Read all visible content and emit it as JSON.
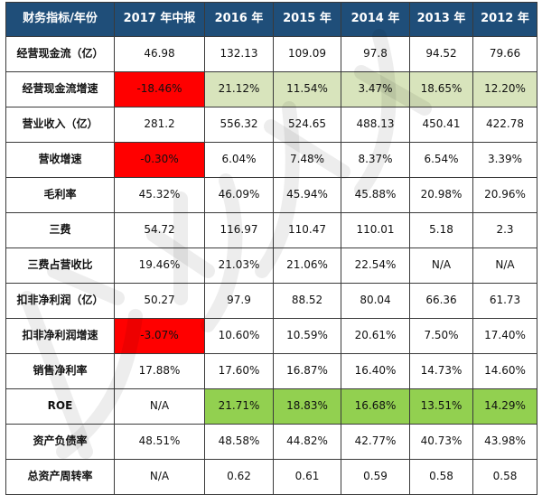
{
  "table": {
    "headers": [
      "财务指标/年份",
      "2017 年中报",
      "2016 年",
      "2015 年",
      "2014 年",
      "2013 年",
      "2012 年"
    ],
    "rows": [
      {
        "label": "经营现金流（亿）",
        "values": [
          "46.98",
          "132.13",
          "109.09",
          "97.8",
          "94.52",
          "79.66"
        ],
        "highlight": [
          "",
          "",
          "",
          "",
          "",
          ""
        ]
      },
      {
        "label": "经营现金流增速",
        "values": [
          "-18.46%",
          "21.12%",
          "11.54%",
          "3.47%",
          "18.65%",
          "12.20%"
        ],
        "highlight": [
          "red",
          "light",
          "light",
          "light",
          "light",
          "light"
        ]
      },
      {
        "label": "营业收入（亿）",
        "values": [
          "281.2",
          "556.32",
          "524.65",
          "488.13",
          "450.41",
          "422.78"
        ],
        "highlight": [
          "",
          "",
          "",
          "",
          "",
          ""
        ]
      },
      {
        "label": "营收增速",
        "values": [
          "-0.30%",
          "6.04%",
          "7.48%",
          "8.37%",
          "6.54%",
          "3.39%"
        ],
        "highlight": [
          "red",
          "",
          "",
          "",
          "",
          ""
        ]
      },
      {
        "label": "毛利率",
        "values": [
          "45.32%",
          "46.09%",
          "45.94%",
          "45.88%",
          "20.98%",
          "20.96%"
        ],
        "highlight": [
          "",
          "",
          "",
          "",
          "",
          ""
        ]
      },
      {
        "label": "三费",
        "values": [
          "54.72",
          "116.97",
          "110.47",
          "110.01",
          "5.18",
          "2.3"
        ],
        "highlight": [
          "",
          "",
          "",
          "",
          "",
          ""
        ]
      },
      {
        "label": "三费占营收比",
        "values": [
          "19.46%",
          "21.03%",
          "21.06%",
          "22.54%",
          "N/A",
          "N/A"
        ],
        "highlight": [
          "",
          "",
          "",
          "",
          "",
          ""
        ]
      },
      {
        "label": "扣非净利润（亿）",
        "values": [
          "50.27",
          "97.9",
          "88.52",
          "80.04",
          "66.36",
          "61.73"
        ],
        "highlight": [
          "",
          "",
          "",
          "",
          "",
          ""
        ]
      },
      {
        "label": "扣非净利润增速",
        "values": [
          "-3.07%",
          "10.60%",
          "10.59%",
          "20.61%",
          "7.50%",
          "17.40%"
        ],
        "highlight": [
          "red",
          "",
          "",
          "",
          "",
          ""
        ]
      },
      {
        "label": "销售净利率",
        "values": [
          "17.88%",
          "17.60%",
          "16.87%",
          "16.40%",
          "14.73%",
          "14.60%"
        ],
        "highlight": [
          "",
          "",
          "",
          "",
          "",
          ""
        ]
      },
      {
        "label": "ROE",
        "values": [
          "N/A",
          "21.71%",
          "18.83%",
          "16.68%",
          "13.51%",
          "14.29%"
        ],
        "highlight": [
          "",
          "green",
          "green",
          "green",
          "green",
          "green"
        ]
      },
      {
        "label": "资产负债率",
        "values": [
          "48.51%",
          "48.58%",
          "44.82%",
          "42.77%",
          "40.73%",
          "43.98%"
        ],
        "highlight": [
          "",
          "",
          "",
          "",
          "",
          ""
        ]
      },
      {
        "label": "总资产周转率",
        "values": [
          "N/A",
          "0.62",
          "0.61",
          "0.59",
          "0.58",
          "0.58"
        ],
        "highlight": [
          "",
          "",
          "",
          "",
          "",
          ""
        ]
      }
    ]
  },
  "colors": {
    "header_bg": "#1f4e79",
    "header_text": "#ffffff",
    "red": "#ff0000",
    "light": "#d8e4bc",
    "green": "#92d050"
  }
}
